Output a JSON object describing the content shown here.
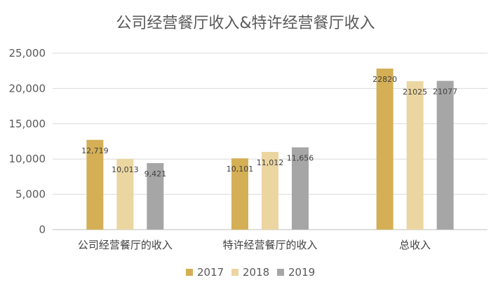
{
  "chart_data": {
    "type": "bar",
    "title": "公司经营餐厅收入&特许经营餐厅收入",
    "categories": [
      "公司经营餐厅的收入",
      "特许经营餐厅的收入",
      "总收入"
    ],
    "series": [
      {
        "name": "2017",
        "values": [
          12719,
          10101,
          22820
        ],
        "labels": [
          "12,719",
          "10,101",
          "22820"
        ]
      },
      {
        "name": "2018",
        "values": [
          10013,
          11012,
          21025
        ],
        "labels": [
          "10,013",
          "11,012",
          "21025"
        ]
      },
      {
        "name": "2019",
        "values": [
          9421,
          11656,
          21077
        ],
        "labels": [
          "9,421",
          "11,656",
          "21077"
        ]
      }
    ],
    "colors": [
      "#D4AF55",
      "#EBD6A1",
      "#A6A6A6"
    ],
    "ylim": [
      0,
      25000
    ],
    "yticks": [
      0,
      5000,
      10000,
      15000,
      20000,
      25000
    ],
    "ytick_labels": [
      "0",
      "5,000",
      "10,000",
      "15,000",
      "20,000",
      "25,000"
    ],
    "grid": true,
    "legend_position": "bottom"
  }
}
